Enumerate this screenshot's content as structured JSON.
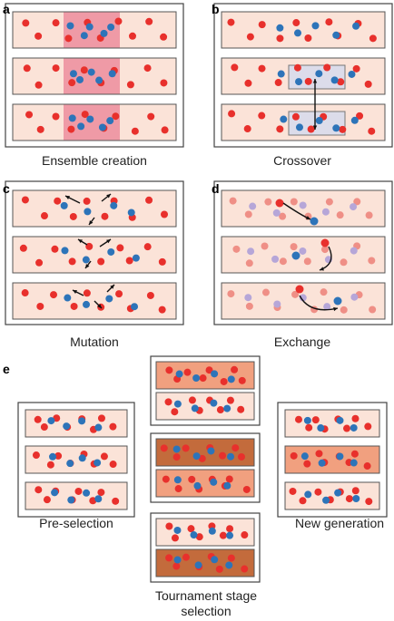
{
  "colors": {
    "red_particle": "#e8302c",
    "blue_particle": "#2d74b9",
    "faded_red": "#ef8f86",
    "faded_blue": "#b6a6d8",
    "strip_light": "#fbe3d8",
    "strip_pink_band": "#ef9aa6",
    "strip_medium": "#f1a07f",
    "strip_dark": "#c36b3c",
    "highlight_box": "#dcdcea",
    "frame": "#444444"
  },
  "panels": {
    "a": {
      "letter": "a",
      "caption": "Ensemble creation"
    },
    "b": {
      "letter": "b",
      "caption": "Crossover"
    },
    "c": {
      "letter": "c",
      "caption": "Mutation"
    },
    "d": {
      "letter": "d",
      "caption": "Exchange"
    },
    "e": {
      "letter": "e",
      "pre_caption": "Pre-selection",
      "new_caption": "New generation",
      "tournament_caption_line1": "Tournament stage",
      "tournament_caption_line2": "selection"
    }
  }
}
